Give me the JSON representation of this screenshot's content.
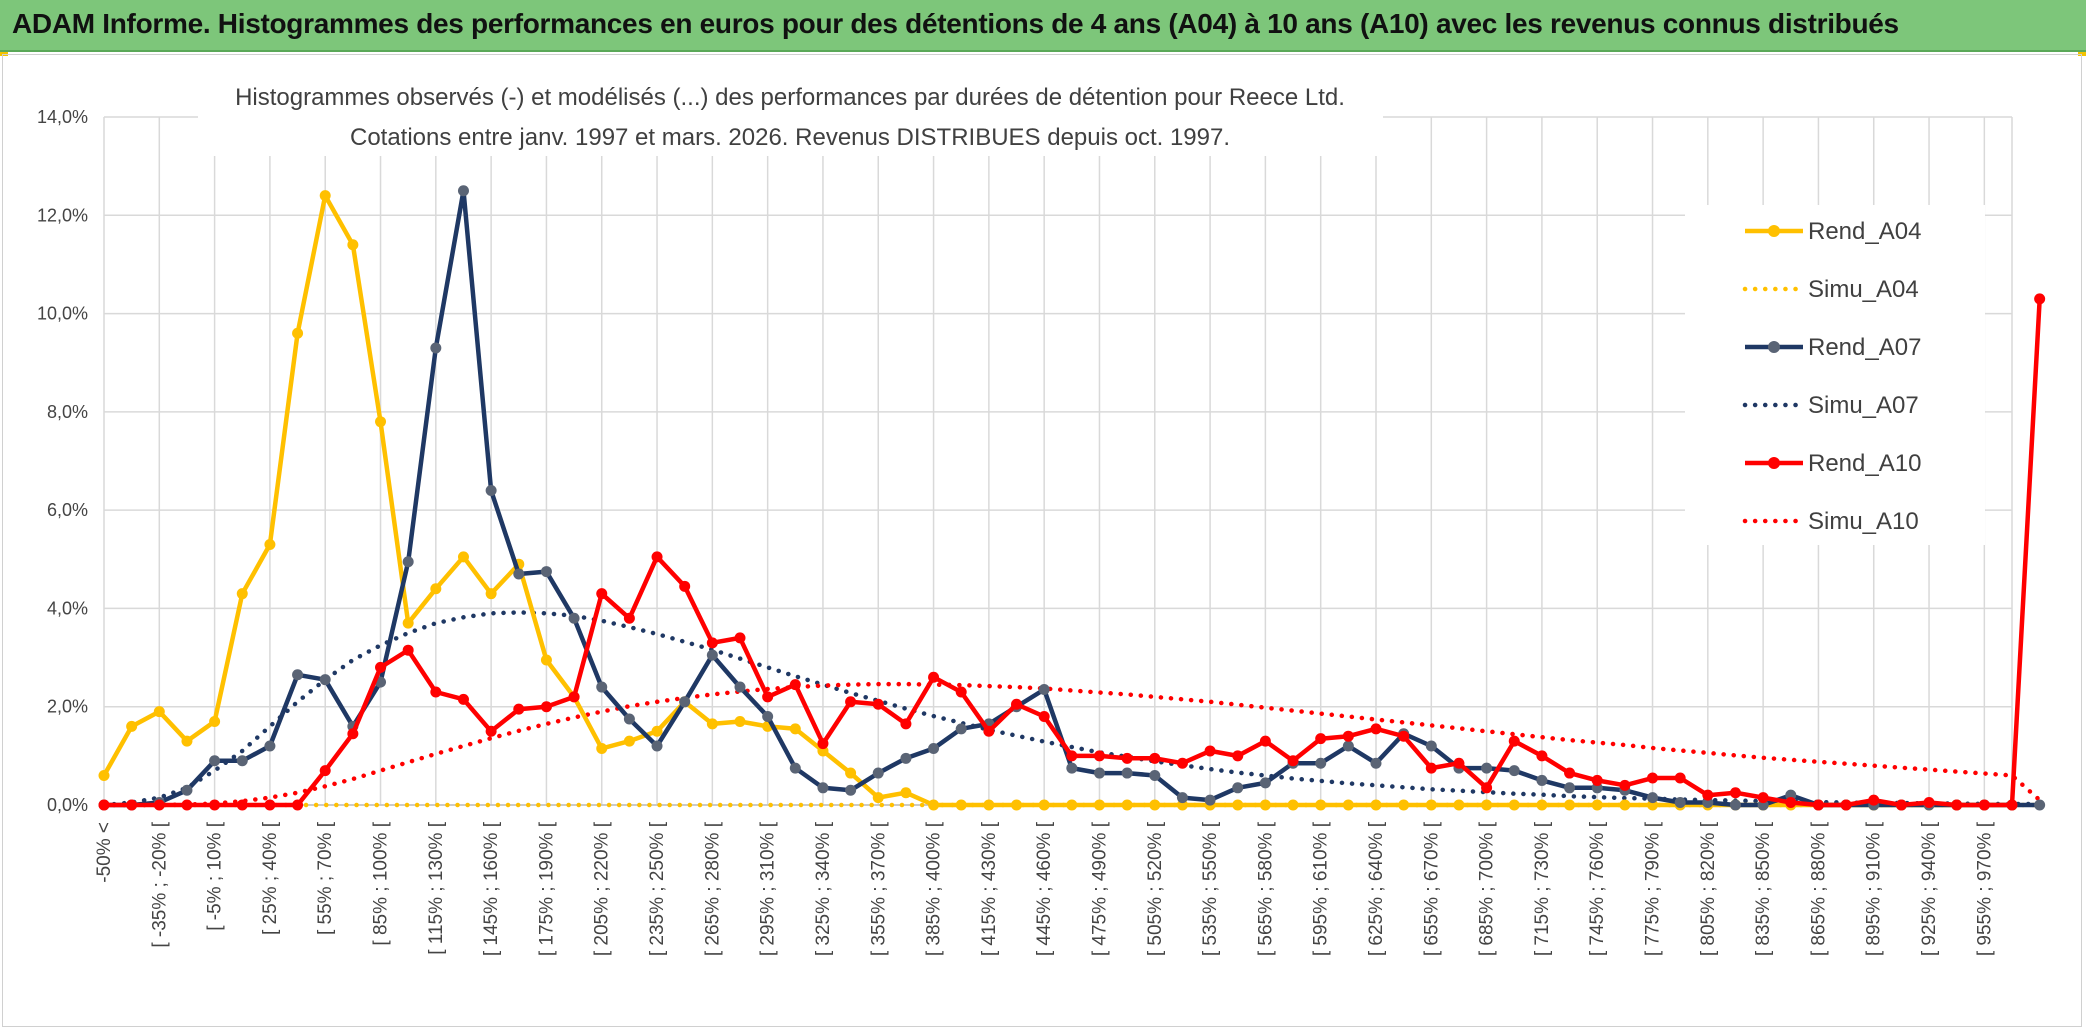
{
  "header": {
    "title": "ADAM Informe. Histogrammes des performances en euros pour des détentions de 4 ans (A04) à 10 ans (A10) avec les revenus connus distribués"
  },
  "chart_data": {
    "type": "line",
    "title_line1": "Histogrammes observés (-) et modélisés (...) des performances par durées de détention pour Reece Ltd.",
    "title_line2": "Cotations entre janv. 1997 et mars. 2026. Revenus DISTRIBUES depuis oct. 1997.",
    "ylim": [
      0,
      14
    ],
    "yticks": [
      "0,0%",
      "2,0%",
      "4,0%",
      "6,0%",
      "8,0%",
      "10,0%",
      "12,0%",
      "14,0%"
    ],
    "grid": true,
    "legend_position": "right",
    "x_tick_labels": [
      "-50% <",
      "[ -35% ; -20% [",
      "[ -5% ; 10% [",
      "[ 25% ; 40% [",
      "[ 55% ; 70% [",
      "[ 85% ; 100% [",
      "[ 115% ; 130% [",
      "[ 145% ; 160% [",
      "[ 175% ; 190% [",
      "[ 205% ; 220% [",
      "[ 235% ; 250% [",
      "[ 265% ; 280% [",
      "[ 295% ; 310% [",
      "[ 325% ; 340% [",
      "[ 355% ; 370% [",
      "[ 385% ; 400% [",
      "[ 415% ; 430% [",
      "[ 445% ; 460% [",
      "[ 475% ; 490% [",
      "[ 505% ; 520% [",
      "[ 535% ; 550% [",
      "[ 565% ; 580% [",
      "[ 595% ; 610% [",
      "[ 625% ; 640% [",
      "[ 655% ; 670% [",
      "[ 685% ; 700% [",
      "[ 715% ; 730% [",
      "[ 745% ; 760% [",
      "[ 775% ; 790% [",
      "[ 805% ; 820% [",
      "[ 835% ; 850% [",
      "[ 865% ; 880% [",
      "[ 895% ; 910% [",
      "[ 925% ; 940% [",
      "[ 955% ; 970% ["
    ],
    "series": [
      {
        "name": "Rend_A04",
        "style": "solid",
        "color": "#ffc000",
        "values": [
          0.6,
          1.6,
          1.9,
          1.3,
          1.7,
          4.3,
          5.3,
          9.6,
          12.4,
          11.4,
          7.8,
          3.7,
          4.4,
          5.05,
          4.3,
          4.9,
          2.95,
          2.2,
          1.15,
          1.3,
          1.5,
          2.1,
          1.65,
          1.7,
          1.6,
          1.55,
          1.1,
          0.65,
          0.15,
          0.25,
          0,
          0,
          0,
          0,
          0,
          0,
          0,
          0,
          0,
          0,
          0,
          0,
          0,
          0,
          0,
          0,
          0,
          0,
          0,
          0,
          0,
          0,
          0,
          0,
          0,
          0,
          0,
          0,
          0,
          0,
          0,
          0,
          0,
          0,
          0,
          0,
          0,
          0,
          0,
          0
        ]
      },
      {
        "name": "Simu_A04",
        "style": "dotted",
        "color": "#ffc000",
        "values": [
          0,
          0,
          0,
          0,
          0,
          0,
          0,
          0,
          0,
          0,
          0,
          0,
          0,
          0,
          0,
          0,
          0,
          0,
          0,
          0,
          0,
          0,
          0,
          0,
          0,
          0,
          0,
          0,
          0,
          0,
          0,
          0,
          0,
          0,
          0,
          0,
          0,
          0,
          0,
          0,
          0,
          0,
          0,
          0,
          0,
          0,
          0,
          0,
          0,
          0,
          0,
          0,
          0,
          0,
          0,
          0,
          0,
          0,
          0,
          0,
          0,
          0,
          0,
          0,
          0,
          0,
          0,
          0,
          0,
          0,
          0
        ]
      },
      {
        "name": "Rend_A07",
        "style": "solid",
        "color": "#1f3864",
        "values": [
          0,
          0,
          0.05,
          0.3,
          0.9,
          0.9,
          1.2,
          2.65,
          2.55,
          1.6,
          2.5,
          4.95,
          9.3,
          12.5,
          6.4,
          4.7,
          4.75,
          3.8,
          2.4,
          1.75,
          1.2,
          2.1,
          3.05,
          2.4,
          1.8,
          0.75,
          0.35,
          0.3,
          0.65,
          0.95,
          1.15,
          1.55,
          1.65,
          2.0,
          2.35,
          0.75,
          0.65,
          0.65,
          0.6,
          0.15,
          0.1,
          0.35,
          0.45,
          0.85,
          0.85,
          1.2,
          0.85,
          1.45,
          1.2,
          0.75,
          0.75,
          0.7,
          0.5,
          0.35,
          0.35,
          0.3,
          0.15,
          0.05,
          0.05,
          0,
          0,
          0.2,
          0,
          0,
          0,
          0,
          0,
          0,
          0,
          0,
          0
        ]
      },
      {
        "name": "Simu_A07",
        "style": "dotted",
        "color": "#1f3864",
        "values": [
          0,
          0.05,
          0.15,
          0.35,
          0.7,
          1.1,
          1.6,
          2.1,
          2.55,
          2.95,
          3.25,
          3.5,
          3.7,
          3.82,
          3.9,
          3.92,
          3.9,
          3.85,
          3.75,
          3.62,
          3.48,
          3.32,
          3.16,
          2.98,
          2.8,
          2.62,
          2.45,
          2.28,
          2.12,
          1.96,
          1.81,
          1.67,
          1.53,
          1.41,
          1.29,
          1.18,
          1.07,
          0.98,
          0.89,
          0.81,
          0.73,
          0.66,
          0.6,
          0.54,
          0.49,
          0.44,
          0.4,
          0.36,
          0.32,
          0.29,
          0.26,
          0.23,
          0.21,
          0.18,
          0.16,
          0.14,
          0.13,
          0.11,
          0.1,
          0.09,
          0.08,
          0.07,
          0.06,
          0.05,
          0.04,
          0.04,
          0.03,
          0.03,
          0.02,
          0.02,
          0.02
        ]
      },
      {
        "name": "Rend_A10",
        "style": "solid",
        "color": "#ff0000",
        "values": [
          0,
          0,
          0,
          0,
          0,
          0,
          0,
          0,
          0.7,
          1.45,
          2.8,
          3.15,
          2.3,
          2.15,
          1.5,
          1.95,
          2.0,
          2.2,
          4.3,
          3.8,
          5.05,
          4.45,
          3.3,
          3.4,
          2.2,
          2.45,
          1.25,
          2.1,
          2.05,
          1.65,
          2.6,
          2.3,
          1.5,
          2.05,
          1.8,
          1.0,
          1.0,
          0.95,
          0.95,
          0.85,
          1.1,
          1.0,
          1.3,
          0.9,
          1.35,
          1.4,
          1.55,
          1.4,
          0.75,
          0.85,
          0.35,
          1.3,
          1.0,
          0.65,
          0.5,
          0.4,
          0.55,
          0.55,
          0.2,
          0.25,
          0.15,
          0.05,
          0,
          0,
          0.1,
          0,
          0.05,
          0,
          0,
          0,
          10.3
        ]
      },
      {
        "name": "Simu_A10",
        "style": "dotted",
        "color": "#ff0000",
        "values": [
          0,
          0,
          0,
          0.01,
          0.03,
          0.08,
          0.15,
          0.25,
          0.38,
          0.53,
          0.7,
          0.87,
          1.04,
          1.2,
          1.36,
          1.51,
          1.65,
          1.78,
          1.9,
          2.01,
          2.1,
          2.18,
          2.25,
          2.31,
          2.36,
          2.4,
          2.43,
          2.45,
          2.46,
          2.46,
          2.45,
          2.44,
          2.42,
          2.4,
          2.37,
          2.33,
          2.29,
          2.25,
          2.2,
          2.15,
          2.1,
          2.04,
          1.98,
          1.92,
          1.86,
          1.8,
          1.74,
          1.68,
          1.62,
          1.56,
          1.5,
          1.44,
          1.38,
          1.32,
          1.27,
          1.22,
          1.16,
          1.11,
          1.06,
          1.01,
          0.96,
          0.92,
          0.88,
          0.84,
          0.8,
          0.76,
          0.72,
          0.68,
          0.64,
          0.6,
          0.1
        ]
      }
    ]
  }
}
